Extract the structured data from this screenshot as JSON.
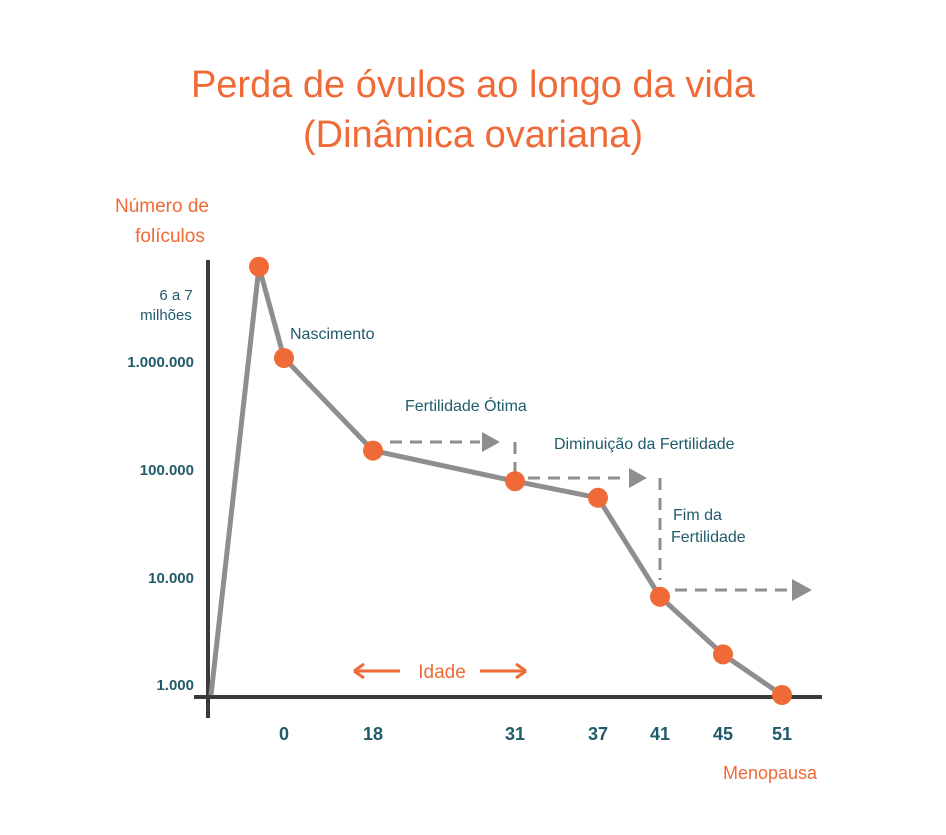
{
  "chart_data": {
    "type": "line",
    "title": "Perda de óvulos ao longo da vida",
    "subtitle": "(Dinâmica ovariana)",
    "ylabel": [
      "Número de",
      "folículos"
    ],
    "y_scale": "log",
    "y_ticks": [
      {
        "value": 6500000,
        "label": [
          "6 a 7",
          "milhões"
        ]
      },
      {
        "value": 1000000,
        "label": "1.000.000"
      },
      {
        "value": 100000,
        "label": "100.000"
      },
      {
        "value": 10000,
        "label": "10.000"
      },
      {
        "value": 1000,
        "label": "1.000"
      }
    ],
    "x_ticks": [
      "0",
      "18",
      "31",
      "37",
      "41",
      "45",
      "51"
    ],
    "x_note": "Menopausa",
    "axis_label": "Idade",
    "series": [
      {
        "points": [
          {
            "x": "start",
            "y": 1000,
            "marker": false
          },
          {
            "x": "pre-0",
            "y": 6500000,
            "marker": true
          },
          {
            "x": "0",
            "y": 1000000,
            "marker": true
          },
          {
            "x": "18",
            "y": 150000,
            "marker": true
          },
          {
            "x": "31",
            "y": 80000,
            "marker": true
          },
          {
            "x": "37",
            "y": 57000,
            "marker": true
          },
          {
            "x": "41",
            "y": 7500,
            "marker": true
          },
          {
            "x": "45",
            "y": 2300,
            "marker": true
          },
          {
            "x": "51",
            "y": 1000,
            "marker": true
          }
        ]
      }
    ],
    "annotations": [
      {
        "text": "Nascimento"
      },
      {
        "text": "Fertilidade Ótima"
      },
      {
        "text": "Diminuição da Fertilidade"
      },
      {
        "text": [
          "Fim da",
          "Fertilidade"
        ]
      }
    ],
    "colors": {
      "line": "#8e8e8e",
      "marker": "#ef6a36",
      "accent": "#ef6a36",
      "label": "#1f5b6b",
      "axis": "#3a3a3a"
    }
  }
}
